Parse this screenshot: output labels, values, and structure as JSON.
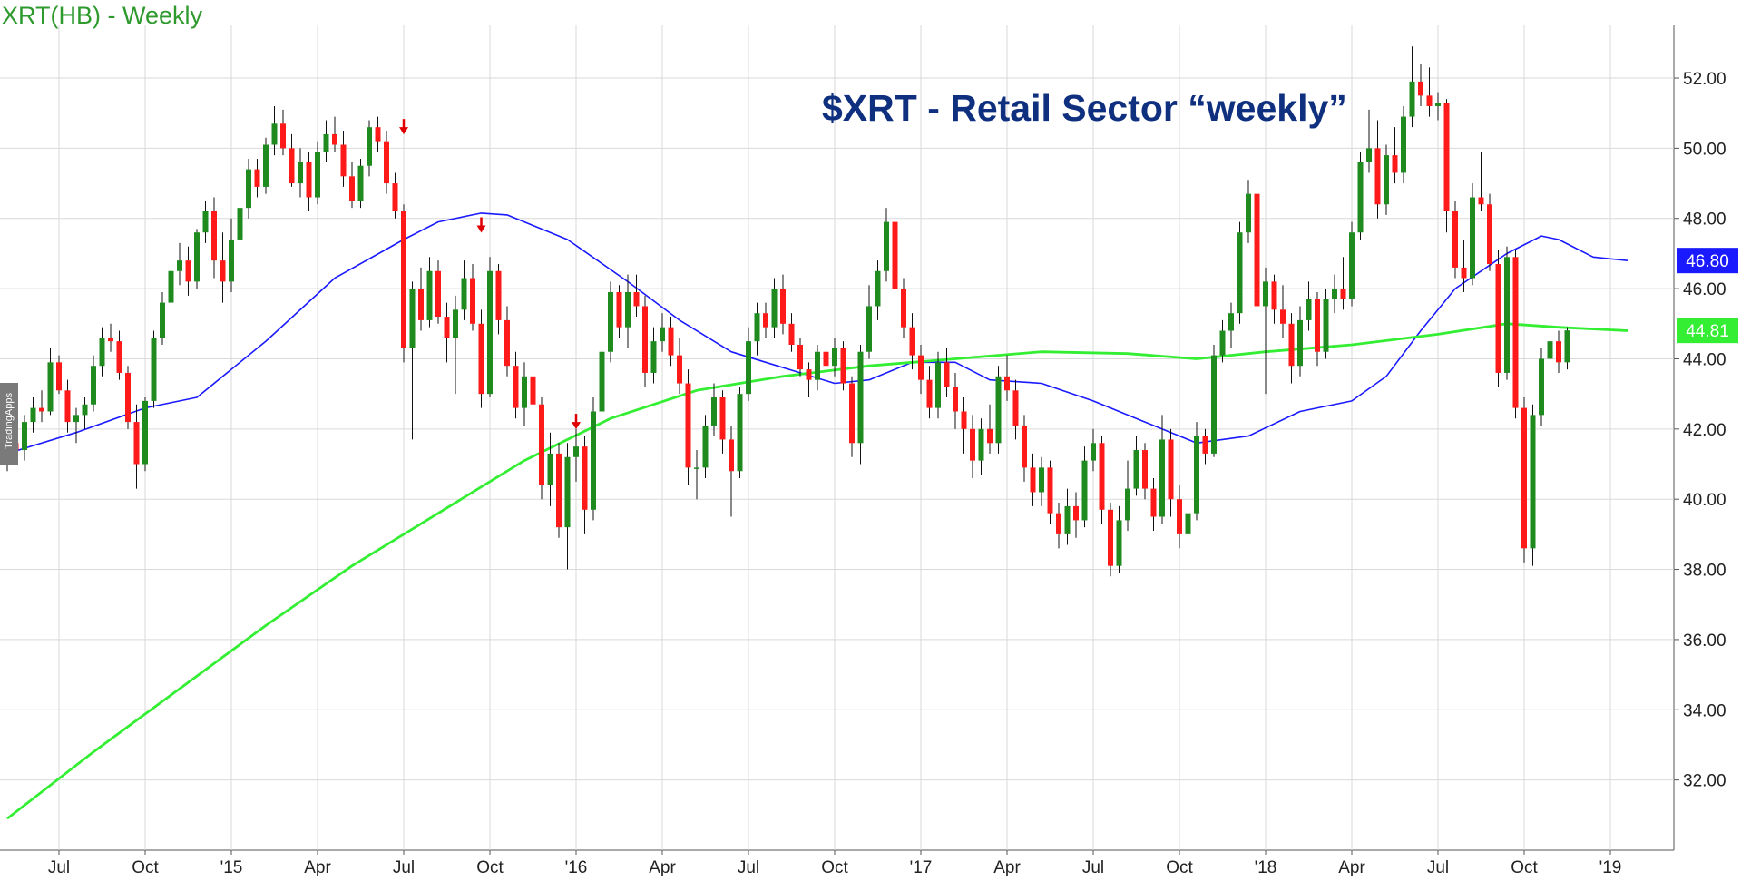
{
  "chart_title": "XRT(HB) - Weekly",
  "watermark_text": "TradingApps",
  "annotation": "$XRT - Retail Sector “weekly”",
  "colors": {
    "up": "#1f8b1f",
    "down": "#ff1a1a",
    "ma_blue": "#1a1aff",
    "ma_green": "#33ee33",
    "grid": "#d9d9d9",
    "axis_text": "#222222",
    "arrow": "#e00000"
  },
  "chart_data": {
    "type": "candlestick",
    "title": "XRT(HB) - Weekly",
    "y_ticks": [
      "32.00",
      "34.00",
      "36.00",
      "38.00",
      "40.00",
      "42.00",
      "44.00",
      "46.00",
      "48.00",
      "50.00",
      "52.00"
    ],
    "ylim": [
      30.0,
      53.5
    ],
    "x_ticks": [
      {
        "label": "Jul",
        "week": 6
      },
      {
        "label": "Oct",
        "week": 16
      },
      {
        "label": "'15",
        "week": 26
      },
      {
        "label": "Apr",
        "week": 36
      },
      {
        "label": "Jul",
        "week": 46
      },
      {
        "label": "Oct",
        "week": 56
      },
      {
        "label": "'16",
        "week": 66
      },
      {
        "label": "Apr",
        "week": 76
      },
      {
        "label": "Jul",
        "week": 86
      },
      {
        "label": "Oct",
        "week": 96
      },
      {
        "label": "'17",
        "week": 106
      },
      {
        "label": "Apr",
        "week": 116
      },
      {
        "label": "Jul",
        "week": 126
      },
      {
        "label": "Oct",
        "week": 136
      },
      {
        "label": "'18",
        "week": 146
      },
      {
        "label": "Apr",
        "week": 156
      },
      {
        "label": "Jul",
        "week": 166
      },
      {
        "label": "Oct",
        "week": 176
      },
      {
        "label": "'19",
        "week": 186
      }
    ],
    "price_tags": [
      {
        "value": 46.8,
        "label": "46.80",
        "color": "#1a1aff"
      },
      {
        "value": 44.81,
        "label": "44.81",
        "color": "#33ee33"
      }
    ],
    "grid": true,
    "series": [
      {
        "name": "blue",
        "type": "line",
        "points": [
          [
            0,
            41.3
          ],
          [
            8,
            41.9
          ],
          [
            16,
            42.6
          ],
          [
            22,
            42.9
          ],
          [
            30,
            44.5
          ],
          [
            38,
            46.3
          ],
          [
            46,
            47.4
          ],
          [
            50,
            47.9
          ],
          [
            55,
            48.15
          ],
          [
            58,
            48.1
          ],
          [
            65,
            47.4
          ],
          [
            72,
            46.2
          ],
          [
            78,
            45.1
          ],
          [
            84,
            44.2
          ],
          [
            88,
            43.9
          ],
          [
            92,
            43.6
          ],
          [
            96,
            43.3
          ],
          [
            100,
            43.4
          ],
          [
            105,
            43.9
          ],
          [
            110,
            43.9
          ],
          [
            114,
            43.4
          ],
          [
            120,
            43.3
          ],
          [
            126,
            42.8
          ],
          [
            132,
            42.2
          ],
          [
            138,
            41.6
          ],
          [
            144,
            41.8
          ],
          [
            150,
            42.5
          ],
          [
            156,
            42.8
          ],
          [
            160,
            43.5
          ],
          [
            164,
            44.8
          ],
          [
            168,
            46.0
          ],
          [
            174,
            47.0
          ],
          [
            178,
            47.5
          ],
          [
            180,
            47.4
          ],
          [
            184,
            46.9
          ],
          [
            188,
            46.8
          ]
        ]
      },
      {
        "name": "green",
        "type": "line",
        "points": [
          [
            0,
            30.9
          ],
          [
            10,
            32.8
          ],
          [
            20,
            34.6
          ],
          [
            30,
            36.4
          ],
          [
            40,
            38.1
          ],
          [
            50,
            39.6
          ],
          [
            60,
            41.1
          ],
          [
            70,
            42.3
          ],
          [
            80,
            43.1
          ],
          [
            90,
            43.5
          ],
          [
            100,
            43.8
          ],
          [
            110,
            44.0
          ],
          [
            120,
            44.2
          ],
          [
            130,
            44.15
          ],
          [
            138,
            44.0
          ],
          [
            146,
            44.2
          ],
          [
            156,
            44.4
          ],
          [
            166,
            44.7
          ],
          [
            174,
            45.0
          ],
          [
            180,
            44.9
          ],
          [
            188,
            44.8
          ]
        ]
      }
    ],
    "candles": [
      [
        41.2,
        41.7,
        40.8,
        41.6
      ],
      [
        41.6,
        42.0,
        41.0,
        41.4
      ],
      [
        41.4,
        42.4,
        41.1,
        42.2
      ],
      [
        42.2,
        42.9,
        41.9,
        42.6
      ],
      [
        42.6,
        43.1,
        42.2,
        42.5
      ],
      [
        42.5,
        44.3,
        42.4,
        43.9
      ],
      [
        43.9,
        44.1,
        43.0,
        43.1
      ],
      [
        43.1,
        43.4,
        41.9,
        42.2
      ],
      [
        42.2,
        42.6,
        41.6,
        42.4
      ],
      [
        42.4,
        42.9,
        42.0,
        42.7
      ],
      [
        42.7,
        44.1,
        42.5,
        43.8
      ],
      [
        43.8,
        44.9,
        43.5,
        44.6
      ],
      [
        44.6,
        45.0,
        44.2,
        44.5
      ],
      [
        44.5,
        44.8,
        43.4,
        43.6
      ],
      [
        43.6,
        43.8,
        42.0,
        42.2
      ],
      [
        42.2,
        42.7,
        40.3,
        41.0
      ],
      [
        41.0,
        42.9,
        40.8,
        42.8
      ],
      [
        42.8,
        44.8,
        42.6,
        44.6
      ],
      [
        44.6,
        45.9,
        44.4,
        45.6
      ],
      [
        45.6,
        46.7,
        45.3,
        46.5
      ],
      [
        46.5,
        47.3,
        46.1,
        46.8
      ],
      [
        46.8,
        47.2,
        45.8,
        46.2
      ],
      [
        46.2,
        47.7,
        46.0,
        47.6
      ],
      [
        47.6,
        48.5,
        47.3,
        48.2
      ],
      [
        48.2,
        48.6,
        46.3,
        46.8
      ],
      [
        46.8,
        47.6,
        45.6,
        46.2
      ],
      [
        46.2,
        48.0,
        45.9,
        47.4
      ],
      [
        47.4,
        48.7,
        47.1,
        48.3
      ],
      [
        48.3,
        49.7,
        48.0,
        49.4
      ],
      [
        49.4,
        49.7,
        48.6,
        48.9
      ],
      [
        48.9,
        50.3,
        48.7,
        50.1
      ],
      [
        50.1,
        51.2,
        49.8,
        50.7
      ],
      [
        50.7,
        51.1,
        49.8,
        50.0
      ],
      [
        50.0,
        50.4,
        48.9,
        49.0
      ],
      [
        49.0,
        50.0,
        48.6,
        49.6
      ],
      [
        49.6,
        49.9,
        48.2,
        48.6
      ],
      [
        48.6,
        50.2,
        48.4,
        49.9
      ],
      [
        49.9,
        50.8,
        49.6,
        50.4
      ],
      [
        50.4,
        50.9,
        49.9,
        50.1
      ],
      [
        50.1,
        50.5,
        48.9,
        49.2
      ],
      [
        49.2,
        49.6,
        48.3,
        48.5
      ],
      [
        48.5,
        49.7,
        48.3,
        49.5
      ],
      [
        49.5,
        50.8,
        49.2,
        50.6
      ],
      [
        50.6,
        50.9,
        49.9,
        50.2
      ],
      [
        50.2,
        50.5,
        48.7,
        49.0
      ],
      [
        49.0,
        49.3,
        48.0,
        48.2
      ],
      [
        48.2,
        48.4,
        43.9,
        44.3
      ],
      [
        44.3,
        46.2,
        41.7,
        46.0
      ],
      [
        46.0,
        46.6,
        44.8,
        45.1
      ],
      [
        45.1,
        46.9,
        44.9,
        46.5
      ],
      [
        46.5,
        46.8,
        45.0,
        45.2
      ],
      [
        45.2,
        45.6,
        43.9,
        44.6
      ],
      [
        44.6,
        45.8,
        43.0,
        45.4
      ],
      [
        45.4,
        46.8,
        45.1,
        46.3
      ],
      [
        46.3,
        46.7,
        44.8,
        45.0
      ],
      [
        45.0,
        45.4,
        42.6,
        43.0
      ],
      [
        43.0,
        46.9,
        42.9,
        46.5
      ],
      [
        46.5,
        46.7,
        44.7,
        45.1
      ],
      [
        45.1,
        45.5,
        43.5,
        43.8
      ],
      [
        43.8,
        44.2,
        42.3,
        42.6
      ],
      [
        42.6,
        43.9,
        42.1,
        43.5
      ],
      [
        43.5,
        43.8,
        42.4,
        42.7
      ],
      [
        42.7,
        42.9,
        40.0,
        40.4
      ],
      [
        40.4,
        41.9,
        39.8,
        41.3
      ],
      [
        41.3,
        41.6,
        38.9,
        39.2
      ],
      [
        39.2,
        41.6,
        38.0,
        41.2
      ],
      [
        41.2,
        42.0,
        40.5,
        41.5
      ],
      [
        41.5,
        41.8,
        39.0,
        39.7
      ],
      [
        39.7,
        42.9,
        39.4,
        42.5
      ],
      [
        42.5,
        44.6,
        42.3,
        44.2
      ],
      [
        44.2,
        46.2,
        43.9,
        45.9
      ],
      [
        45.9,
        46.1,
        44.6,
        44.9
      ],
      [
        44.9,
        46.4,
        44.3,
        45.9
      ],
      [
        45.9,
        46.4,
        45.2,
        45.5
      ],
      [
        45.5,
        45.8,
        43.2,
        43.6
      ],
      [
        43.6,
        44.9,
        43.3,
        44.5
      ],
      [
        44.5,
        45.3,
        44.2,
        44.9
      ],
      [
        44.9,
        45.2,
        43.8,
        44.1
      ],
      [
        44.1,
        44.6,
        43.0,
        43.3
      ],
      [
        43.3,
        43.7,
        40.4,
        40.9
      ],
      [
        40.9,
        41.4,
        40.0,
        40.9
      ],
      [
        40.9,
        42.4,
        40.6,
        42.1
      ],
      [
        42.1,
        43.3,
        41.8,
        42.9
      ],
      [
        42.9,
        43.1,
        41.3,
        41.7
      ],
      [
        41.7,
        42.1,
        39.5,
        40.8
      ],
      [
        40.8,
        43.2,
        40.6,
        43.0
      ],
      [
        43.0,
        44.9,
        42.8,
        44.5
      ],
      [
        44.5,
        45.6,
        44.1,
        45.3
      ],
      [
        45.3,
        45.6,
        44.6,
        44.9
      ],
      [
        44.9,
        46.3,
        44.6,
        46.0
      ],
      [
        46.0,
        46.4,
        44.7,
        45.0
      ],
      [
        45.0,
        45.3,
        44.2,
        44.4
      ],
      [
        44.4,
        44.6,
        43.5,
        43.7
      ],
      [
        43.7,
        43.9,
        42.9,
        43.4
      ],
      [
        43.4,
        44.4,
        43.1,
        44.2
      ],
      [
        44.2,
        44.5,
        43.6,
        43.8
      ],
      [
        43.8,
        44.6,
        43.5,
        44.3
      ],
      [
        44.3,
        44.5,
        43.1,
        43.3
      ],
      [
        43.3,
        43.5,
        41.2,
        41.6
      ],
      [
        41.6,
        44.4,
        41.0,
        44.2
      ],
      [
        44.2,
        46.1,
        44.0,
        45.5
      ],
      [
        45.5,
        46.8,
        45.1,
        46.5
      ],
      [
        46.5,
        48.3,
        46.2,
        47.9
      ],
      [
        47.9,
        48.2,
        45.6,
        46.0
      ],
      [
        46.0,
        46.3,
        44.6,
        44.9
      ],
      [
        44.9,
        45.3,
        43.7,
        44.1
      ],
      [
        44.1,
        44.4,
        43.0,
        43.4
      ],
      [
        43.4,
        43.8,
        42.3,
        42.6
      ],
      [
        42.6,
        44.2,
        42.3,
        43.9
      ],
      [
        43.9,
        44.3,
        42.9,
        43.2
      ],
      [
        43.2,
        43.6,
        42.0,
        42.5
      ],
      [
        42.5,
        42.9,
        41.3,
        42.0
      ],
      [
        42.0,
        42.4,
        40.6,
        41.1
      ],
      [
        41.1,
        42.3,
        40.7,
        42.0
      ],
      [
        42.0,
        42.7,
        41.3,
        41.6
      ],
      [
        41.6,
        43.8,
        41.3,
        43.5
      ],
      [
        43.5,
        44.1,
        42.8,
        43.1
      ],
      [
        43.1,
        43.4,
        41.7,
        42.1
      ],
      [
        42.1,
        42.4,
        40.5,
        40.9
      ],
      [
        40.9,
        41.3,
        39.8,
        40.2
      ],
      [
        40.2,
        41.2,
        39.8,
        40.9
      ],
      [
        40.9,
        41.1,
        39.3,
        39.6
      ],
      [
        39.6,
        39.9,
        38.6,
        39.0
      ],
      [
        39.0,
        40.3,
        38.7,
        39.8
      ],
      [
        39.8,
        40.2,
        38.9,
        39.4
      ],
      [
        39.4,
        41.5,
        39.2,
        41.1
      ],
      [
        41.1,
        42.0,
        40.8,
        41.6
      ],
      [
        41.6,
        41.8,
        39.3,
        39.7
      ],
      [
        39.7,
        39.9,
        37.8,
        38.1
      ],
      [
        38.1,
        39.8,
        37.9,
        39.4
      ],
      [
        39.4,
        41.1,
        39.1,
        40.3
      ],
      [
        40.3,
        41.8,
        40.1,
        41.4
      ],
      [
        41.4,
        41.6,
        40.0,
        40.3
      ],
      [
        40.3,
        40.6,
        39.1,
        39.5
      ],
      [
        39.5,
        42.4,
        39.3,
        41.7
      ],
      [
        41.7,
        42.0,
        39.5,
        40.0
      ],
      [
        40.0,
        40.4,
        38.6,
        39.0
      ],
      [
        39.0,
        39.9,
        38.7,
        39.6
      ],
      [
        39.6,
        42.2,
        39.4,
        41.8
      ],
      [
        41.8,
        42.0,
        41.0,
        41.3
      ],
      [
        41.3,
        44.4,
        41.2,
        44.1
      ],
      [
        44.1,
        45.1,
        43.9,
        44.8
      ],
      [
        44.8,
        45.6,
        44.3,
        45.3
      ],
      [
        45.3,
        47.9,
        45.0,
        47.6
      ],
      [
        47.6,
        49.1,
        47.3,
        48.7
      ],
      [
        48.7,
        49.0,
        45.0,
        45.5
      ],
      [
        45.5,
        46.6,
        43.0,
        46.2
      ],
      [
        46.2,
        46.4,
        45.0,
        45.4
      ],
      [
        45.4,
        46.1,
        44.6,
        45.0
      ],
      [
        45.0,
        45.3,
        43.3,
        43.8
      ],
      [
        43.8,
        45.5,
        43.5,
        45.1
      ],
      [
        45.1,
        46.2,
        44.8,
        45.7
      ],
      [
        45.7,
        45.9,
        43.8,
        44.2
      ],
      [
        44.2,
        46.0,
        44.0,
        45.7
      ],
      [
        45.7,
        46.4,
        45.3,
        46.0
      ],
      [
        46.0,
        46.9,
        45.4,
        45.7
      ],
      [
        45.7,
        47.9,
        45.5,
        47.6
      ],
      [
        47.6,
        49.9,
        47.4,
        49.6
      ],
      [
        49.6,
        51.1,
        49.3,
        50.0
      ],
      [
        50.0,
        50.8,
        48.0,
        48.4
      ],
      [
        48.4,
        50.1,
        48.1,
        49.8
      ],
      [
        49.8,
        50.6,
        49.0,
        49.3
      ],
      [
        49.3,
        51.2,
        49.0,
        50.9
      ],
      [
        50.9,
        52.9,
        50.6,
        51.9
      ],
      [
        51.9,
        52.4,
        51.2,
        51.5
      ],
      [
        51.5,
        52.3,
        50.9,
        51.2
      ],
      [
        51.2,
        51.6,
        50.8,
        51.3
      ],
      [
        51.3,
        51.4,
        47.6,
        48.2
      ],
      [
        48.2,
        48.5,
        46.3,
        46.6
      ],
      [
        46.6,
        47.4,
        45.9,
        46.3
      ],
      [
        46.3,
        49.0,
        46.1,
        48.6
      ],
      [
        48.6,
        49.9,
        48.2,
        48.4
      ],
      [
        48.4,
        48.7,
        46.5,
        46.7
      ],
      [
        46.7,
        47.1,
        43.2,
        43.6
      ],
      [
        43.6,
        47.2,
        43.4,
        46.9
      ],
      [
        46.9,
        47.1,
        42.3,
        42.6
      ],
      [
        42.6,
        42.9,
        38.2,
        38.6
      ],
      [
        38.6,
        42.7,
        38.1,
        42.4
      ],
      [
        42.4,
        44.3,
        42.1,
        44.0
      ],
      [
        44.0,
        44.9,
        43.3,
        44.5
      ],
      [
        44.5,
        44.8,
        43.6,
        43.9
      ],
      [
        43.9,
        44.9,
        43.7,
        44.81
      ]
    ],
    "arrows": [
      {
        "week": 46,
        "value": 50.6
      },
      {
        "week": 55,
        "value": 47.8
      },
      {
        "week": 66,
        "value": 42.2
      }
    ]
  }
}
